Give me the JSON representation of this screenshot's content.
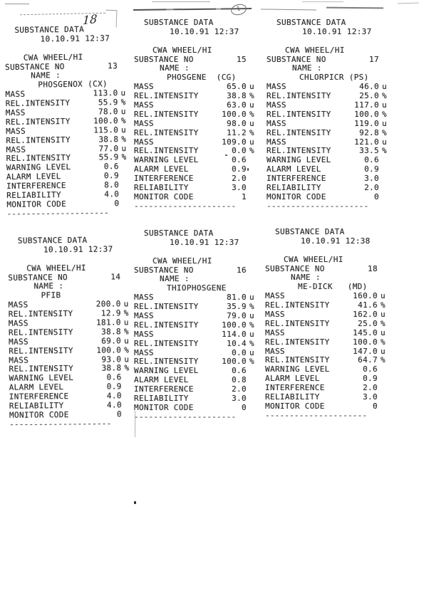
{
  "annotations": [
    {
      "text": "18",
      "style": "handwritten"
    },
    {
      "text": "1",
      "style": "handwritten-circled"
    }
  ],
  "receipts": [
    {
      "title": "SUBSTANCE DATA",
      "datetime": "10.10.91 12:37",
      "device": "CWA WHEEL/HI",
      "substance_no_label": "SUBSTANCE NO",
      "substance_no": "13",
      "name_label": "NAME :",
      "name": "PHOSGENOX (CX)",
      "rows": [
        {
          "label": "MASS",
          "value": "113.0",
          "unit": "u"
        },
        {
          "label": "REL.INTENSITY",
          "value": "55.9",
          "unit": "%"
        },
        {
          "label": "MASS",
          "value": "78.0",
          "unit": "u"
        },
        {
          "label": "REL.INTENSITY",
          "value": "100.0",
          "unit": "%"
        },
        {
          "label": "MASS",
          "value": "115.0",
          "unit": "u"
        },
        {
          "label": "REL.INTENSITY",
          "value": "38.8",
          "unit": "%"
        },
        {
          "label": "MASS",
          "value": "77.0",
          "unit": "u"
        },
        {
          "label": "REL.INTENSITY",
          "value": "55.9",
          "unit": "%"
        },
        {
          "label": "WARNING LEVEL",
          "value": "0.6",
          "unit": ""
        },
        {
          "label": "ALARM LEVEL",
          "value": "0.9",
          "unit": ""
        },
        {
          "label": "INTERFERENCE",
          "value": "8.0",
          "unit": ""
        },
        {
          "label": "RELIABILITY",
          "value": "4.0",
          "unit": ""
        },
        {
          "label": "MONITOR CODE",
          "value": "0",
          "unit": ""
        }
      ],
      "separator": "---------------------"
    },
    {
      "title": "SUBSTANCE DATA",
      "datetime": "10.10.91 12:37",
      "device": "CWA WHEEL/HI",
      "substance_no_label": "SUBSTANCE NO",
      "substance_no": "15",
      "name_label": "NAME :",
      "name": "PHOSGENE  (CG)",
      "rows": [
        {
          "label": "MASS",
          "value": "65.0",
          "unit": "u"
        },
        {
          "label": "REL.INTENSITY",
          "value": "38.8",
          "unit": "%"
        },
        {
          "label": "MASS",
          "value": "63.0",
          "unit": "u"
        },
        {
          "label": "REL.INTENSITY",
          "value": "100.0",
          "unit": "%"
        },
        {
          "label": "MASS",
          "value": "98.0",
          "unit": "u"
        },
        {
          "label": "REL.INTENSITY",
          "value": "11.2",
          "unit": "%"
        },
        {
          "label": "MASS",
          "value": "109.0",
          "unit": "u"
        },
        {
          "label": "REL.INTENSITY",
          "value": "0.0",
          "unit": "%"
        },
        {
          "label": "WARNING LEVEL",
          "value": "0.6",
          "unit": ""
        },
        {
          "label": "ALARM LEVEL",
          "value": "0.9",
          "unit": ""
        },
        {
          "label": "INTERFERENCE",
          "value": "2.0",
          "unit": ""
        },
        {
          "label": "RELIABILITY",
          "value": "3.0",
          "unit": ""
        },
        {
          "label": "MONITOR CODE",
          "value": "1",
          "unit": ""
        }
      ],
      "separator": "---------------------"
    },
    {
      "title": "SUBSTANCE DATA",
      "datetime": "10.10.91 12:37",
      "device": "CWA WHEEL/HI",
      "substance_no_label": "SUBSTANCE NO",
      "substance_no": "17",
      "name_label": "NAME :",
      "name": "CHLORPICR (PS)",
      "rows": [
        {
          "label": "MASS",
          "value": "46.0",
          "unit": "u"
        },
        {
          "label": "REL.INTENSITY",
          "value": "25.0",
          "unit": "%"
        },
        {
          "label": "MASS",
          "value": "117.0",
          "unit": "u"
        },
        {
          "label": "REL.INTENSITY",
          "value": "100.0",
          "unit": "%"
        },
        {
          "label": "MASS",
          "value": "119.0",
          "unit": "u"
        },
        {
          "label": "REL.INTENSITY",
          "value": "92.8",
          "unit": "%"
        },
        {
          "label": "MASS",
          "value": "121.0",
          "unit": "u"
        },
        {
          "label": "REL.INTENSITY",
          "value": "33.5",
          "unit": "%"
        },
        {
          "label": "WARNING LEVEL",
          "value": "0.6",
          "unit": ""
        },
        {
          "label": "ALARM LEVEL",
          "value": "0.9",
          "unit": ""
        },
        {
          "label": "INTERFERENCE",
          "value": "3.0",
          "unit": ""
        },
        {
          "label": "RELIABILITY",
          "value": "2.0",
          "unit": ""
        },
        {
          "label": "MONITOR CODE",
          "value": "0",
          "unit": ""
        }
      ],
      "separator": "---------------------"
    },
    {
      "title": "SUBSTANCE DATA",
      "datetime": "10.10.91 12:37",
      "device": "CWA WHEEL/HI",
      "substance_no_label": "SUBSTANCE NO",
      "substance_no": "14",
      "name_label": "NAME :",
      "name": "PFIB",
      "rows": [
        {
          "label": "MASS",
          "value": "200.0",
          "unit": "u"
        },
        {
          "label": "REL.INTENSITY",
          "value": "12.9",
          "unit": "%"
        },
        {
          "label": "MASS",
          "value": "181.0",
          "unit": "u"
        },
        {
          "label": "REL.INTENSITY",
          "value": "38.8",
          "unit": "%"
        },
        {
          "label": "MASS",
          "value": "69.0",
          "unit": "u"
        },
        {
          "label": "REL.INTENSITY",
          "value": "100.0",
          "unit": "%"
        },
        {
          "label": "MASS",
          "value": "93.0",
          "unit": "u"
        },
        {
          "label": "REL.INTENSITY",
          "value": "38.8",
          "unit": "%"
        },
        {
          "label": "WARNING LEVEL",
          "value": "0.6",
          "unit": ""
        },
        {
          "label": "ALARM LEVEL",
          "value": "0.9",
          "unit": ""
        },
        {
          "label": "INTERFERENCE",
          "value": "4.0",
          "unit": ""
        },
        {
          "label": "RELIABILITY",
          "value": "4.0",
          "unit": ""
        },
        {
          "label": "MONITOR CODE",
          "value": "0",
          "unit": ""
        }
      ],
      "separator": "---------------------"
    },
    {
      "title": "SUBSTANCE DATA",
      "datetime": "10.10.91 12:37",
      "device": "CWA WHEEL/HI",
      "substance_no_label": "SUBSTANCE NO",
      "substance_no": "16",
      "name_label": "NAME :",
      "name": "THIOPHOSGENE",
      "rows": [
        {
          "label": "MASS",
          "value": "81.0",
          "unit": "u"
        },
        {
          "label": "REL.INTENSITY",
          "value": "35.9",
          "unit": "%"
        },
        {
          "label": "MASS",
          "value": "79.0",
          "unit": "u"
        },
        {
          "label": "REL.INTENSITY",
          "value": "100.0",
          "unit": "%"
        },
        {
          "label": "MASS",
          "value": "114.0",
          "unit": "u"
        },
        {
          "label": "REL.INTENSITY",
          "value": "10.4",
          "unit": "%"
        },
        {
          "label": "MASS",
          "value": "0.0",
          "unit": "u"
        },
        {
          "label": "REL.INTENSITY",
          "value": "100.0",
          "unit": "%"
        },
        {
          "label": "WARNING LEVEL",
          "value": "0.6",
          "unit": ""
        },
        {
          "label": "ALARM LEVEL",
          "value": "0.8",
          "unit": ""
        },
        {
          "label": "INTERFERENCE",
          "value": "2.0",
          "unit": ""
        },
        {
          "label": "RELIABILITY",
          "value": "3.0",
          "unit": ""
        },
        {
          "label": "MONITOR CODE",
          "value": "0",
          "unit": ""
        }
      ],
      "separator": "---------------------"
    },
    {
      "title": "SUBSTANCE DATA",
      "datetime": "10.10.91 12:38",
      "device": "CWA WHEEL/HI",
      "substance_no_label": "SUBSTANCE NO",
      "substance_no": "18",
      "name_label": "NAME :",
      "name": "ME-DICK   (MD)",
      "rows": [
        {
          "label": "MASS",
          "value": "160.0",
          "unit": "u"
        },
        {
          "label": "REL.INTENSITY",
          "value": "41.6",
          "unit": "%"
        },
        {
          "label": "MASS",
          "value": "162.0",
          "unit": "u"
        },
        {
          "label": "REL.INTENSITY",
          "value": "25.0",
          "unit": "%"
        },
        {
          "label": "MASS",
          "value": "145.0",
          "unit": "u"
        },
        {
          "label": "REL.INTENSITY",
          "value": "100.0",
          "unit": "%"
        },
        {
          "label": "MASS",
          "value": "147.0",
          "unit": "u"
        },
        {
          "label": "REL.INTENSITY",
          "value": "64.7",
          "unit": "%"
        },
        {
          "label": "WARNING LEVEL",
          "value": "0.6",
          "unit": ""
        },
        {
          "label": "ALARM LEVEL",
          "value": "0.9",
          "unit": ""
        },
        {
          "label": "INTERFERENCE",
          "value": "2.0",
          "unit": ""
        },
        {
          "label": "RELIABILITY",
          "value": "3.0",
          "unit": ""
        },
        {
          "label": "MONITOR CODE",
          "value": "0",
          "unit": ""
        }
      ],
      "separator": "---------------------"
    }
  ]
}
